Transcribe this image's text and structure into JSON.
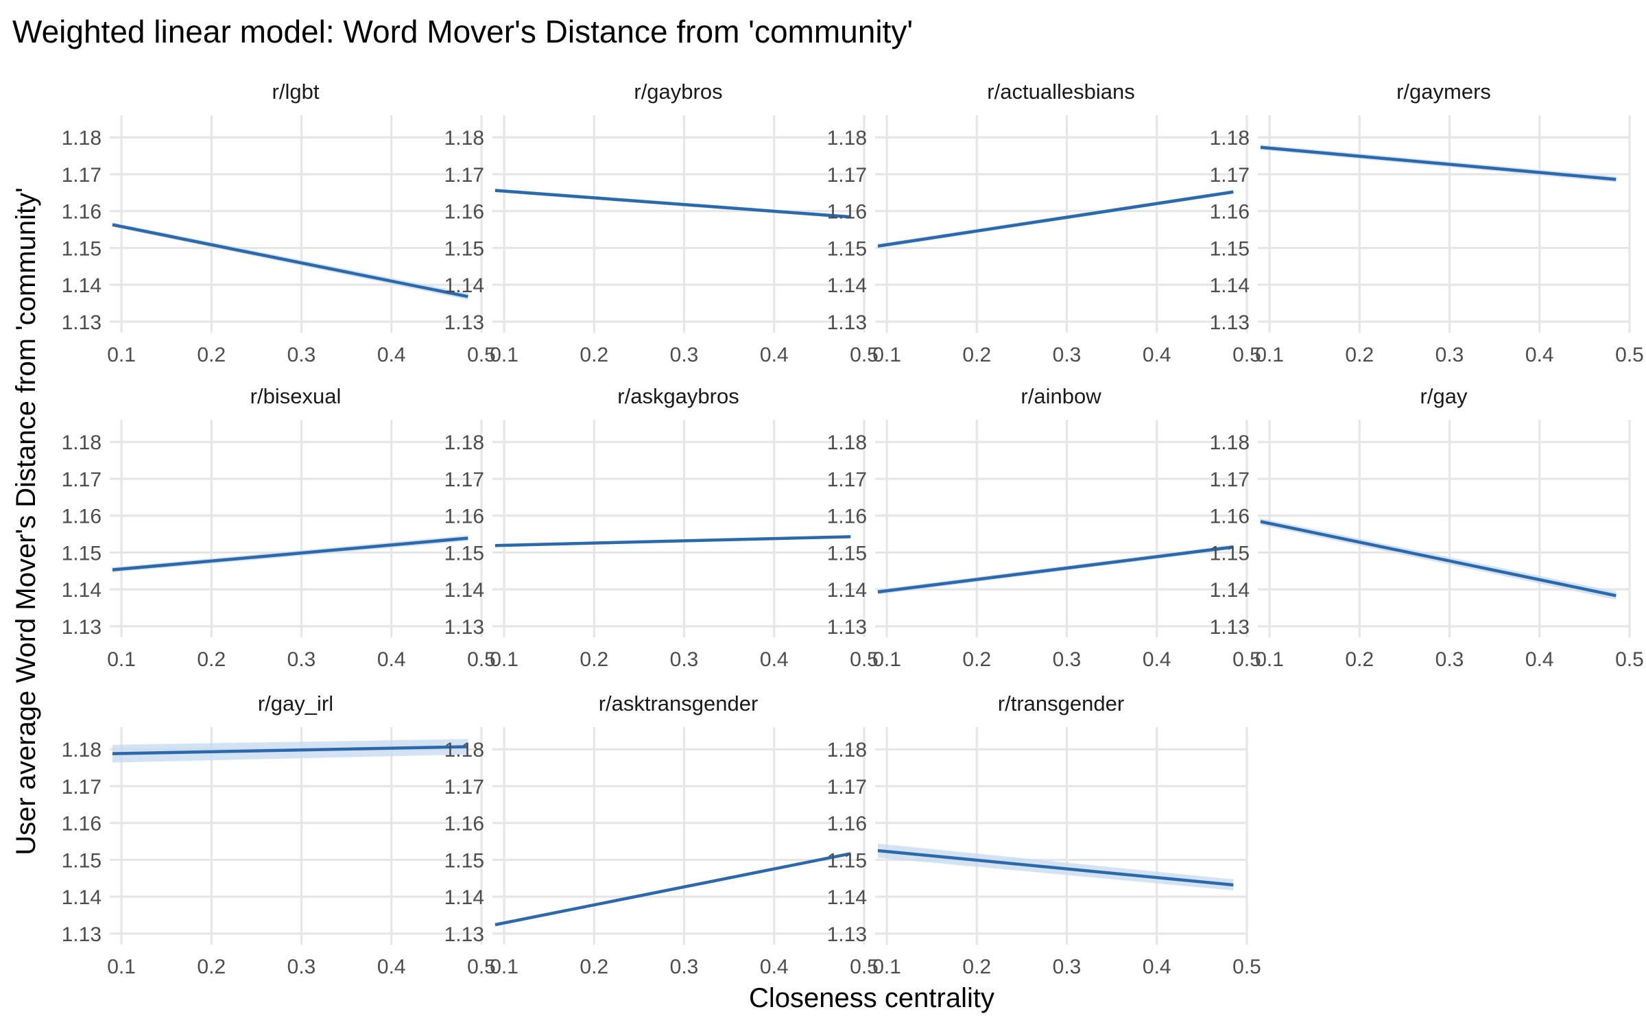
{
  "chart_data": {
    "type": "line",
    "title": "Weighted linear model: Word Mover's Distance from 'community'",
    "xlabel": "Closeness centrality",
    "ylabel": "User average Word Mover's Distance from 'community'",
    "xlim": [
      0.087,
      0.5
    ],
    "ylim": [
      1.127,
      1.186
    ],
    "x_ticks": [
      "0.1",
      "0.2",
      "0.3",
      "0.4",
      "0.5"
    ],
    "y_ticks": [
      "1.13",
      "1.14",
      "1.15",
      "1.16",
      "1.17",
      "1.18"
    ],
    "x_tick_values": [
      0.1,
      0.2,
      0.3,
      0.4,
      0.5
    ],
    "y_tick_values": [
      1.13,
      1.14,
      1.15,
      1.16,
      1.17,
      1.18
    ],
    "grid": true,
    "line_color": "#2b69aa",
    "band_color": "#c6d9ef",
    "panels": [
      {
        "name": "r/lgbt",
        "x": [
          0.09,
          0.485
        ],
        "y": [
          1.1563,
          1.1368
        ],
        "se": [
          0.0006,
          0.0009
        ]
      },
      {
        "name": "r/gaybros",
        "x": [
          0.09,
          0.485
        ],
        "y": [
          1.1656,
          1.1584
        ],
        "se": [
          0.0005,
          0.0005
        ]
      },
      {
        "name": "r/actuallesbians",
        "x": [
          0.09,
          0.485
        ],
        "y": [
          1.1505,
          1.1652
        ],
        "se": [
          0.0006,
          0.0005
        ]
      },
      {
        "name": "r/gaymers",
        "x": [
          0.09,
          0.485
        ],
        "y": [
          1.1773,
          1.1686
        ],
        "se": [
          0.0007,
          0.0008
        ]
      },
      {
        "name": "r/bisexual",
        "x": [
          0.09,
          0.485
        ],
        "y": [
          1.1453,
          1.1539
        ],
        "se": [
          0.0007,
          0.0008
        ]
      },
      {
        "name": "r/askgaybros",
        "x": [
          0.09,
          0.485
        ],
        "y": [
          1.1519,
          1.1543
        ],
        "se": [
          0.0004,
          0.0004
        ]
      },
      {
        "name": "r/ainbow",
        "x": [
          0.09,
          0.485
        ],
        "y": [
          1.1393,
          1.1515
        ],
        "se": [
          0.0007,
          0.0006
        ]
      },
      {
        "name": "r/gay",
        "x": [
          0.09,
          0.485
        ],
        "y": [
          1.1584,
          1.1383
        ],
        "se": [
          0.0009,
          0.0011
        ]
      },
      {
        "name": "r/gay_irl",
        "x": [
          0.09,
          0.485
        ],
        "y": [
          1.1788,
          1.1807
        ],
        "se": [
          0.0024,
          0.0021
        ]
      },
      {
        "name": "r/asktransgender",
        "x": [
          0.09,
          0.485
        ],
        "y": [
          1.1324,
          1.1517
        ],
        "se": [
          0.0004,
          0.0004
        ]
      },
      {
        "name": "r/transgender",
        "x": [
          0.09,
          0.485
        ],
        "y": [
          1.1525,
          1.1432
        ],
        "se": [
          0.0019,
          0.0015
        ]
      }
    ]
  }
}
